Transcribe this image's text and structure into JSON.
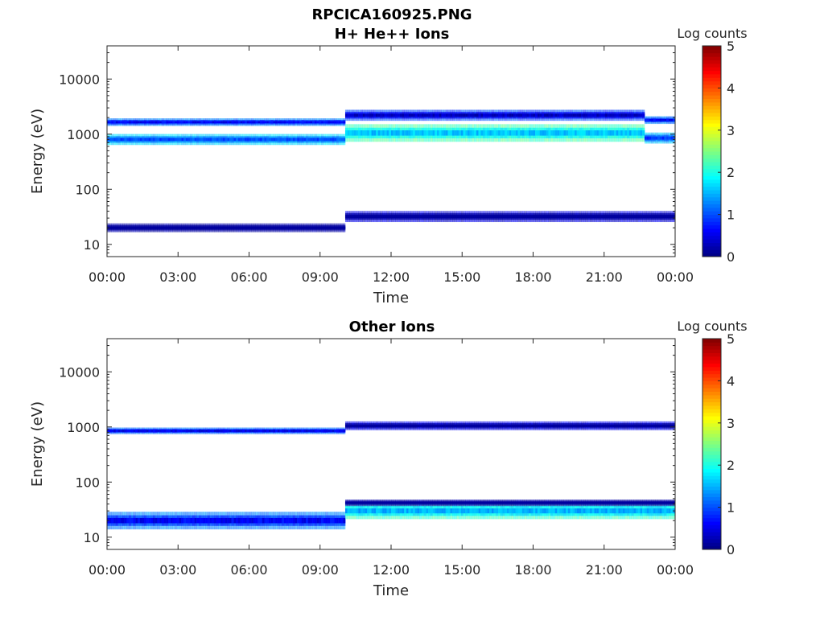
{
  "figure": {
    "filename": "RPCICA160925.PNG"
  },
  "chart_data": [
    {
      "type": "heatmap",
      "title": "H+ He++ Ions",
      "xlabel": "Time",
      "ylabel": "Energy (eV)",
      "x_ticks": [
        "00:00",
        "03:00",
        "06:00",
        "09:00",
        "12:00",
        "15:00",
        "18:00",
        "21:00",
        "00:00"
      ],
      "xlim_hours": [
        0,
        24
      ],
      "y_scale": "log",
      "ylim": [
        6,
        40000
      ],
      "y_ticks": [
        "10",
        "100",
        "1000",
        "10000"
      ],
      "colorbar": {
        "label": "Log counts",
        "range": [
          0,
          5
        ],
        "ticks": [
          "0",
          "1",
          "2",
          "3",
          "4",
          "5"
        ],
        "colormap": "jet"
      },
      "features": [
        {
          "start_h": 0.0,
          "end_h": 10.1,
          "energy_eV": 800,
          "level": 2.0,
          "log_halfwidth": 0.1
        },
        {
          "start_h": 0.0,
          "end_h": 10.1,
          "energy_eV": 1650,
          "level": 1.6,
          "log_halfwidth": 0.07
        },
        {
          "start_h": 0.0,
          "end_h": 10.1,
          "energy_eV": 20,
          "level": 0.5,
          "log_halfwidth": 0.08
        },
        {
          "start_h": 10.1,
          "end_h": 22.7,
          "energy_eV": 1050,
          "level": 2.6,
          "log_halfwidth": 0.16
        },
        {
          "start_h": 10.1,
          "end_h": 22.7,
          "energy_eV": 2200,
          "level": 1.3,
          "log_halfwidth": 0.1
        },
        {
          "start_h": 10.1,
          "end_h": 24.0,
          "energy_eV": 32,
          "level": 0.8,
          "log_halfwidth": 0.1
        },
        {
          "start_h": 22.7,
          "end_h": 24.0,
          "energy_eV": 850,
          "level": 1.9,
          "log_halfwidth": 0.1
        },
        {
          "start_h": 22.7,
          "end_h": 24.0,
          "energy_eV": 1800,
          "level": 1.6,
          "log_halfwidth": 0.07
        }
      ]
    },
    {
      "type": "heatmap",
      "title": "Other Ions",
      "xlabel": "Time",
      "ylabel": "Energy (eV)",
      "x_ticks": [
        "00:00",
        "03:00",
        "06:00",
        "09:00",
        "12:00",
        "15:00",
        "18:00",
        "21:00",
        "00:00"
      ],
      "xlim_hours": [
        0,
        24
      ],
      "y_scale": "log",
      "ylim": [
        6,
        40000
      ],
      "y_ticks": [
        "10",
        "100",
        "1000",
        "10000"
      ],
      "colorbar": {
        "label": "Log counts",
        "range": [
          0,
          5
        ],
        "ticks": [
          "0",
          "1",
          "2",
          "3",
          "4",
          "5"
        ],
        "colormap": "jet"
      },
      "features": [
        {
          "start_h": 0.0,
          "end_h": 10.1,
          "energy_eV": 850,
          "level": 1.5,
          "log_halfwidth": 0.06
        },
        {
          "start_h": 0.0,
          "end_h": 10.1,
          "energy_eV": 20,
          "level": 1.6,
          "log_halfwidth": 0.16
        },
        {
          "start_h": 10.1,
          "end_h": 24.0,
          "energy_eV": 1050,
          "level": 0.9,
          "log_halfwidth": 0.08
        },
        {
          "start_h": 10.1,
          "end_h": 24.0,
          "energy_eV": 30,
          "level": 2.5,
          "log_halfwidth": 0.15
        },
        {
          "start_h": 10.1,
          "end_h": 24.0,
          "energy_eV": 42,
          "level": 0.5,
          "log_halfwidth": 0.06
        }
      ]
    }
  ]
}
